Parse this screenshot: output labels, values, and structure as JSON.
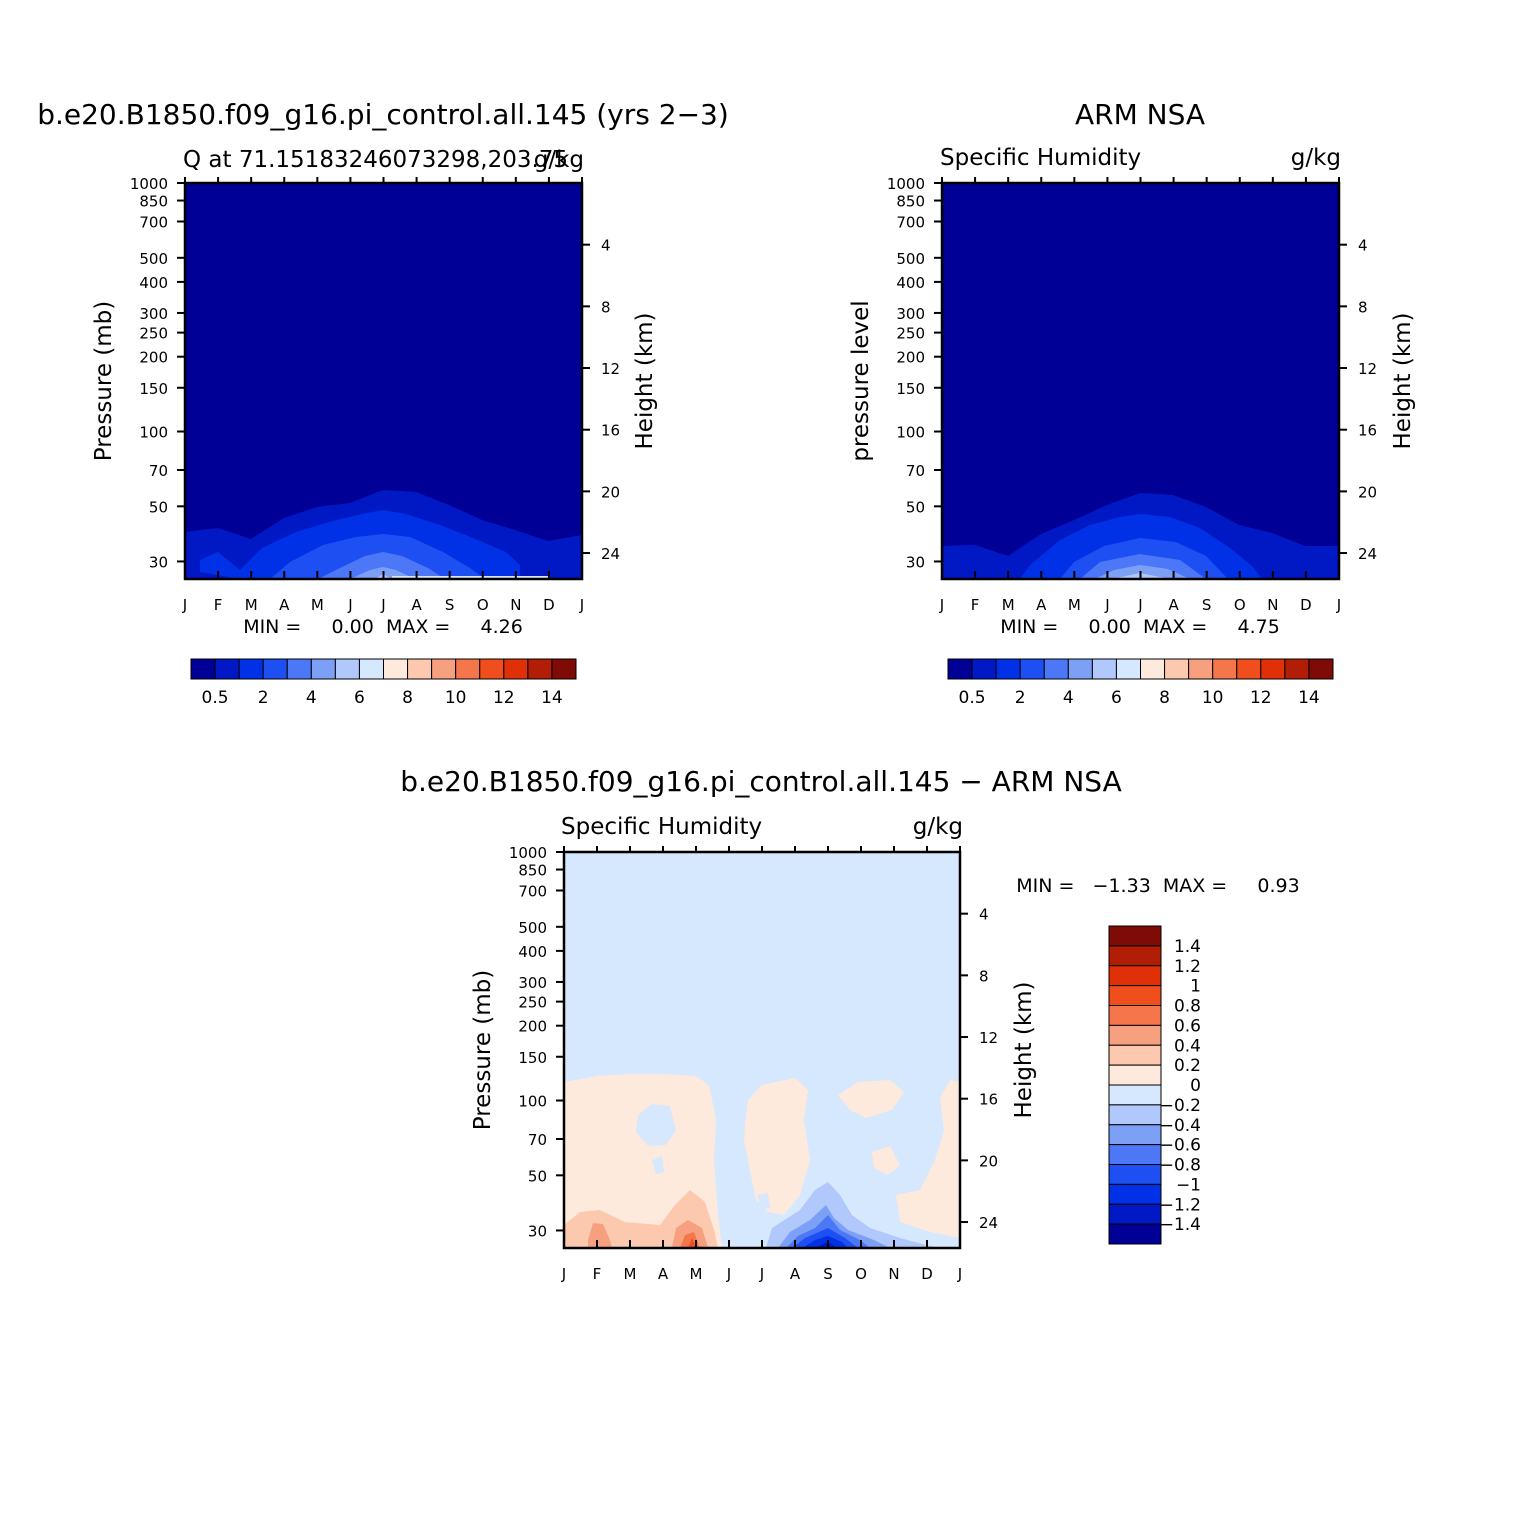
{
  "chart_data": [
    {
      "type": "heatmap",
      "main_title": "b.e20.B1850.f09_g16.pi_control.all.145 (yrs 2−3)",
      "left_title": "Q at 71.15183246073298,203.75",
      "right_title": "g/kg",
      "ylabel": "Pressure (mb)",
      "ylabel_right": "Height (km)",
      "x_ticks": [
        "J",
        "F",
        "M",
        "A",
        "M",
        "J",
        "J",
        "A",
        "S",
        "O",
        "N",
        "D",
        "J"
      ],
      "y_ticks": [
        30,
        50,
        70,
        100,
        150,
        200,
        250,
        300,
        400,
        500,
        700,
        850,
        1000
      ],
      "y_ticks_right": [
        24,
        20,
        16,
        12,
        8,
        4
      ],
      "min_max_text": "MIN =     0.00  MAX =     4.26",
      "min": 0.0,
      "max": 4.26,
      "months": [
        1,
        2,
        3,
        4,
        5,
        6,
        7,
        8,
        9,
        10,
        11,
        12,
        13
      ],
      "colorbar_labels": [
        "0.5",
        "2",
        "4",
        "6",
        "8",
        "10",
        "12",
        "14"
      ],
      "colorbar_colors": [
        "#000096",
        "#0019c4",
        "#0031e6",
        "#1d4ff2",
        "#4c78f7",
        "#7ba0f5",
        "#b0c8fb",
        "#d5e8fd",
        "#feeadd",
        "#fcc8ae",
        "#f7a07f",
        "#f5764b",
        "#f04e1c",
        "#e03008",
        "#b21d05",
        "#7e0b06"
      ]
    },
    {
      "type": "heatmap",
      "main_title": "ARM NSA",
      "left_title": "Specific Humidity",
      "right_title": "g/kg",
      "ylabel": "pressure level",
      "ylabel_right": "Height (km)",
      "x_ticks": [
        "J",
        "F",
        "M",
        "A",
        "M",
        "J",
        "J",
        "A",
        "S",
        "O",
        "N",
        "D",
        "J"
      ],
      "y_ticks": [
        30,
        50,
        70,
        100,
        150,
        200,
        250,
        300,
        400,
        500,
        700,
        850,
        1000
      ],
      "y_ticks_right": [
        24,
        20,
        16,
        12,
        8,
        4
      ],
      "min_max_text": "MIN =     0.00  MAX =     4.75",
      "min": 0.0,
      "max": 4.75,
      "colorbar_labels": [
        "0.5",
        "2",
        "4",
        "6",
        "8",
        "10",
        "12",
        "14"
      ]
    },
    {
      "type": "heatmap",
      "main_title": "b.e20.B1850.f09_g16.pi_control.all.145 − ARM NSA",
      "left_title": "Specific Humidity",
      "right_title": "g/kg",
      "ylabel": "Pressure (mb)",
      "ylabel_right": "Height (km)",
      "x_ticks": [
        "J",
        "F",
        "M",
        "A",
        "M",
        "J",
        "J",
        "A",
        "S",
        "O",
        "N",
        "D",
        "J"
      ],
      "y_ticks": [
        30,
        50,
        70,
        100,
        150,
        200,
        250,
        300,
        400,
        500,
        700,
        850,
        1000
      ],
      "y_ticks_right": [
        24,
        20,
        16,
        12,
        8,
        4
      ],
      "min_max_text": "MIN =   −1.33  MAX =     0.93",
      "min": -1.33,
      "max": 0.93,
      "colorbar_labels": [
        "1.4",
        "1.2",
        "1",
        "0.8",
        "0.6",
        "0.4",
        "0.2",
        "0",
        "−0.2",
        "−0.4",
        "−0.6",
        "−0.8",
        "−1",
        "−1.2",
        "−1.4"
      ],
      "colorbar_colors": [
        "#7e0b06",
        "#b21d05",
        "#e03008",
        "#f04e1c",
        "#f5764b",
        "#f7a07f",
        "#fcc8ae",
        "#feeadd",
        "#d5e8fd",
        "#b0c8fb",
        "#7ba0f5",
        "#4c78f7",
        "#1d4ff2",
        "#0031e6",
        "#0019c4",
        "#000096"
      ]
    }
  ]
}
